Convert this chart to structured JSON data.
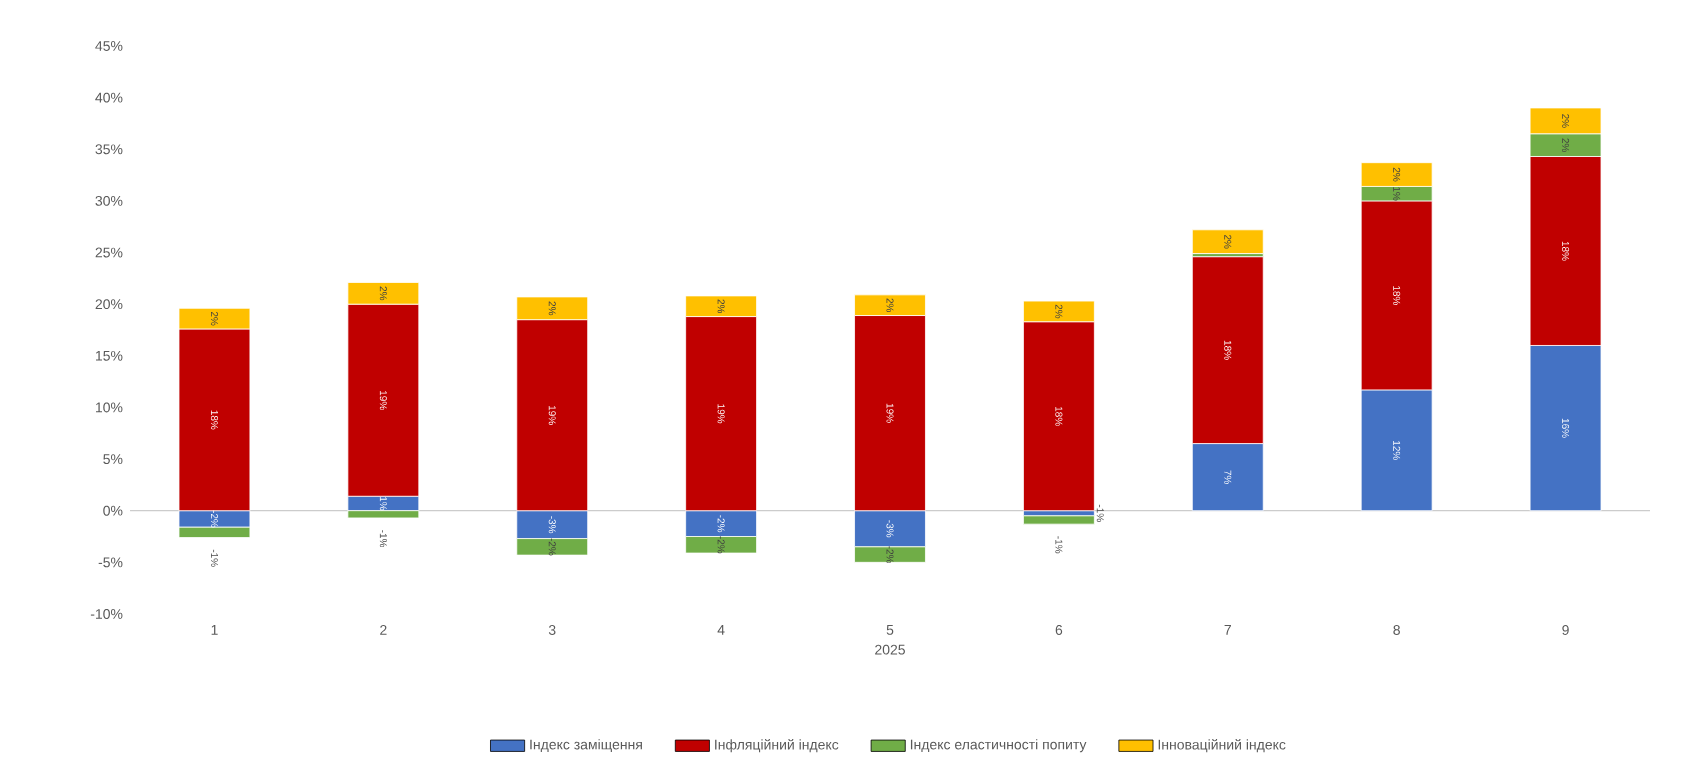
{
  "chart_data": {
    "type": "bar",
    "stacked": true,
    "xlabel": "2025",
    "categories": [
      "1",
      "2",
      "3",
      "4",
      "5",
      "6",
      "7",
      "8",
      "9"
    ],
    "ylim": [
      -10,
      45
    ],
    "yticks": [
      {
        "value": -10,
        "label": "-10%"
      },
      {
        "value": -5,
        "label": "-5%"
      },
      {
        "value": 0,
        "label": "0%"
      },
      {
        "value": 5,
        "label": "5%"
      },
      {
        "value": 10,
        "label": "10%"
      },
      {
        "value": 15,
        "label": "15%"
      },
      {
        "value": 20,
        "label": "20%"
      },
      {
        "value": 25,
        "label": "25%"
      },
      {
        "value": 30,
        "label": "30%"
      },
      {
        "value": 35,
        "label": "35%"
      },
      {
        "value": 40,
        "label": "40%"
      },
      {
        "value": 45,
        "label": "45%"
      }
    ],
    "legend": "bottom",
    "marker": "none",
    "series": [
      {
        "name": "Індекс заміщення",
        "color": "#4472c4",
        "values": [
          -1.6,
          1.4,
          -2.7,
          -2.5,
          -3.5,
          -0.5,
          6.5,
          11.7,
          16.0
        ],
        "value_labels": [
          "-2%",
          "1%",
          "-3%",
          "-2%",
          "-3%",
          "-1%",
          "7%",
          "12%",
          "16%"
        ]
      },
      {
        "name": "Інфляційний індекс",
        "color": "#c00000",
        "values": [
          17.6,
          18.6,
          18.5,
          18.8,
          18.9,
          18.3,
          18.1,
          18.3,
          18.3
        ],
        "value_labels": [
          "18%",
          "19%",
          "19%",
          "19%",
          "19%",
          "18%",
          "18%",
          "18%",
          "18%"
        ]
      },
      {
        "name": "Індекс еластичності попиту",
        "color": "#70ad47",
        "values": [
          -1.0,
          -0.7,
          -1.6,
          -1.6,
          -1.5,
          -0.8,
          0.3,
          1.4,
          2.2
        ],
        "value_labels": [
          "-1%",
          "-1%",
          "-2%",
          "-2%",
          "-2%",
          "-1%",
          null,
          "1%",
          "2%"
        ]
      },
      {
        "name": "Інноваційний індекс",
        "color": "#ffc000",
        "values": [
          2.0,
          2.1,
          2.2,
          2.0,
          2.0,
          2.0,
          2.3,
          2.3,
          2.5
        ],
        "value_labels": [
          "2%",
          "2%",
          "2%",
          "2%",
          "2%",
          "2%",
          "2%",
          "2%",
          "2%"
        ]
      }
    ]
  }
}
